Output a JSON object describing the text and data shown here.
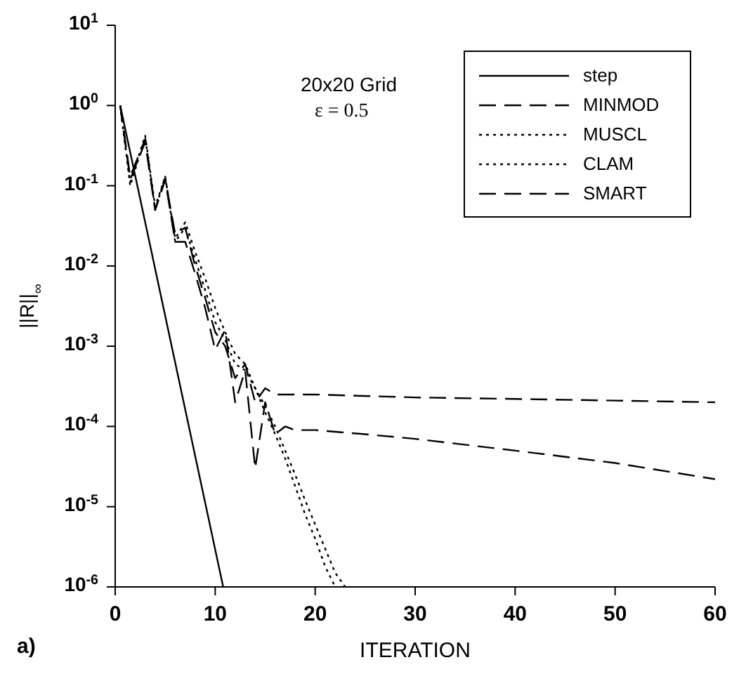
{
  "chart_data": {
    "type": "line",
    "xlabel": "ITERATION",
    "ylabel": "||R||$_{∞}$",
    "annotations": [
      "20x20 Grid",
      "ε = 0.5",
      "a)"
    ],
    "xlim": [
      0,
      60
    ],
    "xticks": [
      0,
      10,
      20,
      30,
      40,
      50,
      60
    ],
    "ylim": [
      1e-06,
      10
    ],
    "log": "y",
    "yticks": [
      {
        "value": 1e-06,
        "label": "10$^{-6}$"
      },
      {
        "value": 1e-05,
        "label": "10$^{-5}$"
      },
      {
        "value": 0.0001,
        "label": "10$^{-4}$"
      },
      {
        "value": 0.001,
        "label": "10$^{-3}$"
      },
      {
        "value": 0.01,
        "label": "10$^{-2}$"
      },
      {
        "value": 0.1,
        "label": "10$^{-1}$"
      },
      {
        "value": 1,
        "label": "10$^{0}$"
      },
      {
        "value": 10,
        "label": "10$^{1}$"
      }
    ],
    "legend": "top right",
    "grid": false,
    "marker": "none",
    "series": [
      {
        "name": "step",
        "color": "#000000",
        "line_style": "solid",
        "x": [
          0.5,
          10.8
        ],
        "values": [
          1,
          1e-06
        ]
      },
      {
        "name": "MINMOD",
        "color": "#000000",
        "line_style": "dashed",
        "x": [
          0.5,
          1.5,
          3,
          4,
          5,
          6,
          7,
          8,
          9,
          10,
          11,
          12,
          13,
          14,
          15,
          16,
          17,
          18,
          20,
          25,
          30,
          40,
          50,
          60
        ],
        "values": [
          1,
          0.12,
          0.35,
          0.05,
          0.12,
          0.02,
          0.02,
          0.008,
          0.003,
          0.0009,
          0.0016,
          0.0002,
          0.0005,
          3e-05,
          0.0002,
          8e-05,
          0.0001,
          9e-05,
          9e-05,
          8e-05,
          7e-05,
          5e-05,
          3.5e-05,
          2.2e-05
        ]
      },
      {
        "name": "MUSCL",
        "color": "#000000",
        "line_style": "dotted",
        "x": [
          0.5,
          1.5,
          3,
          4,
          5,
          6,
          7,
          8,
          9,
          10,
          11,
          12,
          13,
          14,
          15,
          16,
          17,
          18,
          19,
          20,
          21,
          22
        ],
        "values": [
          1,
          0.1,
          0.4,
          0.05,
          0.13,
          0.02,
          0.03,
          0.012,
          0.005,
          0.002,
          0.0012,
          0.0006,
          0.0005,
          0.0003,
          0.00015,
          8e-05,
          4e-05,
          1.8e-05,
          8e-06,
          4e-06,
          1.8e-06,
          1e-06
        ]
      },
      {
        "name": "CLAM",
        "color": "#000000",
        "line_style": "dotted",
        "x": [
          0.5,
          1.5,
          3,
          4,
          5,
          6,
          7,
          8,
          9,
          10,
          11,
          12,
          13,
          14,
          15,
          16,
          17,
          18,
          19,
          20,
          21,
          22,
          23
        ],
        "values": [
          1,
          0.11,
          0.42,
          0.055,
          0.13,
          0.022,
          0.035,
          0.015,
          0.007,
          0.003,
          0.0015,
          0.0008,
          0.0006,
          0.0003,
          0.00018,
          0.0001,
          5e-05,
          2.5e-05,
          1.2e-05,
          6e-06,
          3e-06,
          1.5e-06,
          1e-06
        ]
      },
      {
        "name": "SMART",
        "color": "#000000",
        "line_style": "dashed",
        "x": [
          0.5,
          1.5,
          3,
          4,
          5,
          6,
          7,
          8,
          9,
          10,
          11,
          12,
          13,
          14,
          15,
          16,
          20,
          30,
          40,
          50,
          60
        ],
        "values": [
          1,
          0.13,
          0.38,
          0.05,
          0.12,
          0.025,
          0.03,
          0.01,
          0.004,
          0.0015,
          0.001,
          0.0004,
          0.0006,
          0.0002,
          0.0003,
          0.00025,
          0.00025,
          0.00023,
          0.00022,
          0.00021,
          0.0002
        ]
      }
    ]
  }
}
